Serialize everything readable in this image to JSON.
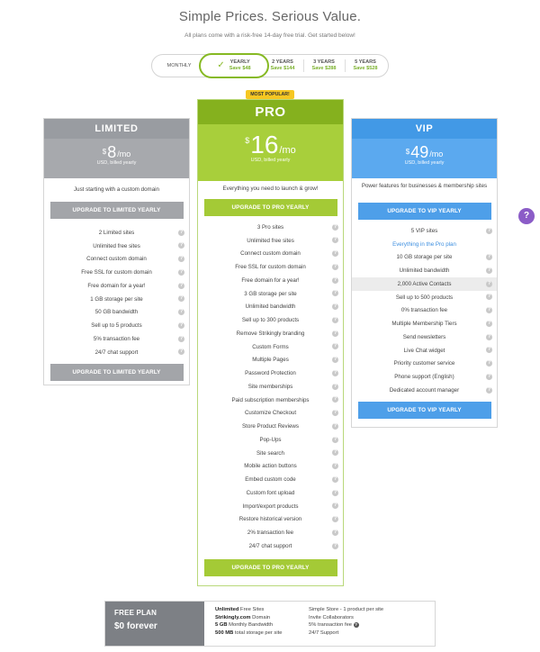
{
  "header": {
    "title": "Simple Prices. Serious Value.",
    "subtitle": "All plans come with a risk-free 14-day free trial. Get started below!"
  },
  "billing": {
    "options": [
      {
        "label": "MONTHLY",
        "save": ""
      },
      {
        "label": "YEARLY",
        "save": "Save $48",
        "selected": true
      },
      {
        "label": "2 YEARS",
        "save": "Save $144"
      },
      {
        "label": "3 YEARS",
        "save": "Save $288"
      },
      {
        "label": "5 YEARS",
        "save": "Save $528"
      }
    ]
  },
  "plans": {
    "limited": {
      "name": "LIMITED",
      "currency": "$",
      "price": "8",
      "per": "/mo",
      "billed": "USD, billed yearly",
      "tagline": "Just starting with a custom domain",
      "cta": "UPGRADE TO LIMITED YEARLY",
      "features": [
        "2 Limited sites",
        "Unlimited free sites",
        "Connect custom domain",
        "Free SSL for custom domain",
        "Free domain for a year!",
        "1 GB storage per site",
        "50 GB bandwidth",
        "Sell up to 5 products",
        "5% transaction fee",
        "24/7 chat support"
      ]
    },
    "pro": {
      "badge": "MOST POPULAR!",
      "name": "PRO",
      "currency": "$",
      "price": "16",
      "per": "/mo",
      "billed": "USD, billed yearly",
      "tagline": "Everything you need to launch & grow!",
      "cta": "UPGRADE TO PRO YEARLY",
      "features": [
        "3 Pro sites",
        "Unlimited free sites",
        "Connect custom domain",
        "Free SSL for custom domain",
        "Free domain for a year!",
        "3 GB storage per site",
        "Unlimited bandwidth",
        "Sell up to 300 products",
        "Remove Strikingly branding",
        "Custom Forms",
        "Multiple Pages",
        "Password Protection",
        "Site memberships",
        "Paid subscription memberships",
        "Customize Checkout",
        "Store Product Reviews",
        "Pop-Ups",
        "Site search",
        "Mobile action buttons",
        "Embed custom code",
        "Custom font upload",
        "Import/export products",
        "Restore historical version",
        "2% transaction fee",
        "24/7 chat support"
      ]
    },
    "vip": {
      "name": "VIP",
      "currency": "$",
      "price": "49",
      "per": "/mo",
      "billed": "USD, billed yearly",
      "tagline": "Power features for businesses & membership sites",
      "cta": "UPGRADE TO VIP YEARLY",
      "features": [
        "5 VIP sites",
        "Everything in the Pro plan",
        "10 GB storage per site",
        "Unlimited bandwidth",
        "2,000 Active Contacts",
        "Sell up to 500 products",
        "0% transaction fee",
        "Multiple Membership Tiers",
        "Send newsletters",
        "Live Chat widget",
        "Priority customer service",
        "Phone support (English)",
        "Dedicated account manager"
      ]
    }
  },
  "help_icon_glyph": "?",
  "free_plan": {
    "name": "FREE PLAN",
    "price": "$0 forever",
    "col1": [
      {
        "bold": "Unlimited",
        "text": " Free Sites"
      },
      {
        "bold": "Strikingly.com",
        "text": " Domain"
      },
      {
        "bold": "5 GB",
        "text": " Monthly Bandwidth"
      },
      {
        "bold": "500 MB",
        "text": " total storage per site"
      }
    ],
    "col2": [
      "Simple Store - 1 product per site",
      "Invite Collaborators",
      "5% transaction fee",
      "24/7 Support"
    ]
  },
  "colors": {
    "limited": "#a7a9ad",
    "pro": "#a8cf3b",
    "pro_dark": "#85b11e",
    "vip": "#5ba9ef",
    "accent_green": "#86b923",
    "help_fab": "#8b5cc7"
  },
  "icons": {
    "selected_option": "check-icon",
    "feature_info": "help-circle-icon",
    "support_chat": "question-bubble-icon"
  }
}
